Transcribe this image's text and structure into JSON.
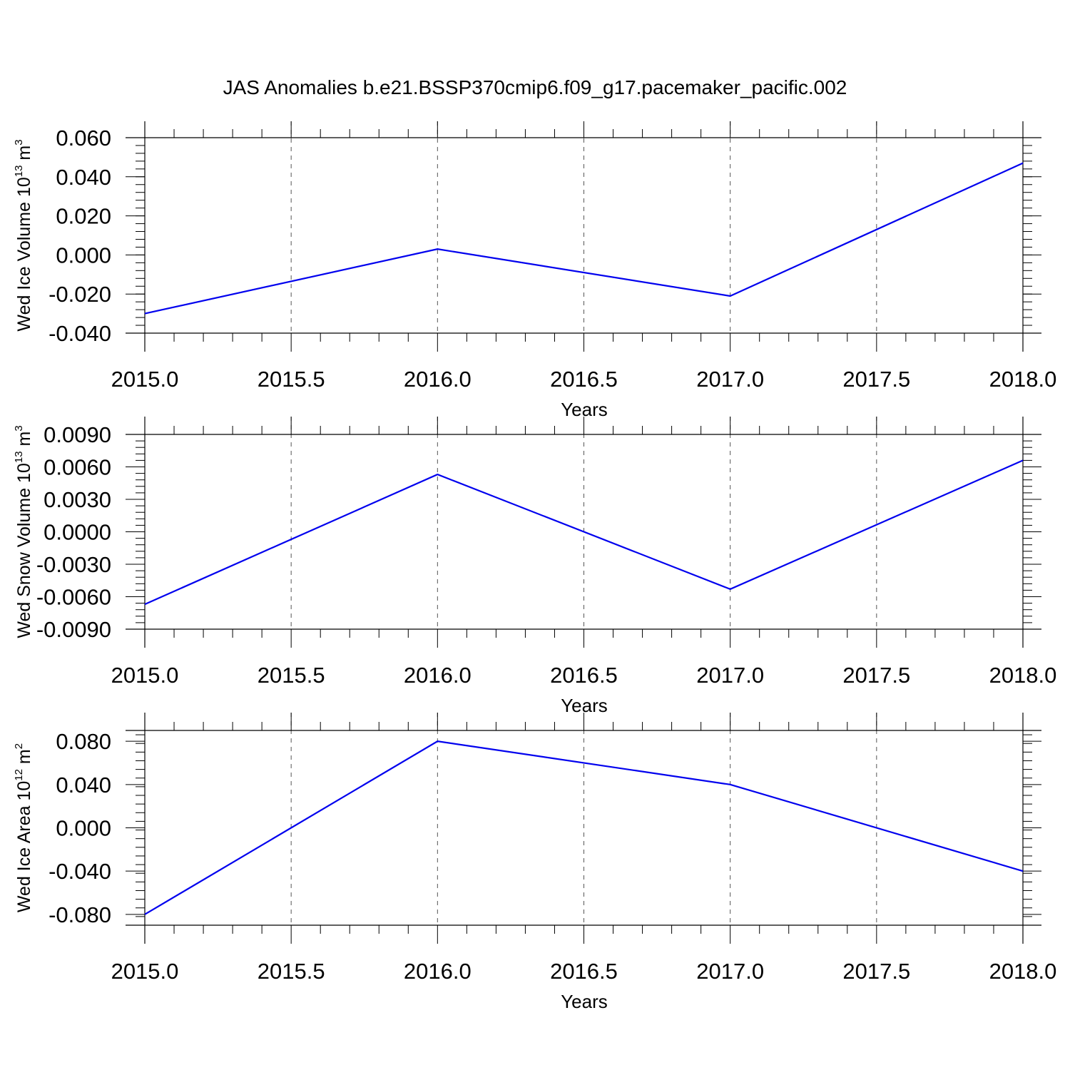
{
  "title": "JAS Anomalies b.e21.BSSP370cmip6.f09_g17.pacemaker_pacific.002",
  "colors": {
    "series": "#0000ee",
    "axes": "#000000",
    "grid": "#555555"
  },
  "chart_data": [
    {
      "type": "line",
      "xlabel": "Years",
      "ylabel": {
        "prefix": "Wed Ice Volume 10",
        "exponent": "13",
        "unit": " m",
        "unit_exponent": "3"
      },
      "x": [
        2015.0,
        2016.0,
        2017.0,
        2018.0
      ],
      "series": [
        {
          "values": [
            -0.03,
            0.003,
            -0.021,
            0.047
          ]
        }
      ],
      "xlim": [
        2015.0,
        2018.0
      ],
      "ylim": [
        -0.04,
        0.06
      ],
      "xticks": [
        "2015.0",
        "2015.5",
        "2016.0",
        "2016.5",
        "2017.0",
        "2017.5",
        "2018.0"
      ],
      "yticks": [
        "-0.040",
        "-0.020",
        "0.000",
        "0.020",
        "0.040",
        "0.060"
      ],
      "grid": "vertical dashed"
    },
    {
      "type": "line",
      "xlabel": "Years",
      "ylabel": {
        "prefix": "Wed Snow Volume 10",
        "exponent": "13",
        "unit": " m",
        "unit_exponent": "3"
      },
      "x": [
        2015.0,
        2016.0,
        2017.0,
        2018.0
      ],
      "series": [
        {
          "values": [
            -0.0067,
            0.0053,
            -0.0053,
            0.0066
          ]
        }
      ],
      "xlim": [
        2015.0,
        2018.0
      ],
      "ylim": [
        -0.009,
        0.009
      ],
      "xticks": [
        "2015.0",
        "2015.5",
        "2016.0",
        "2016.5",
        "2017.0",
        "2017.5",
        "2018.0"
      ],
      "yticks": [
        "-0.0090",
        "-0.0060",
        "-0.0030",
        "0.0000",
        "0.0030",
        "0.0060",
        "0.0090"
      ],
      "grid": "vertical dashed"
    },
    {
      "type": "line",
      "xlabel": "Years",
      "ylabel": {
        "prefix": "Wed Ice Area 10",
        "exponent": "12",
        "unit": " m",
        "unit_exponent": "2"
      },
      "x": [
        2015.0,
        2016.0,
        2017.0,
        2018.0
      ],
      "series": [
        {
          "values": [
            -0.08,
            0.08,
            0.04,
            -0.04
          ]
        }
      ],
      "xlim": [
        2015.0,
        2018.0
      ],
      "ylim": [
        -0.09,
        0.09
      ],
      "xticks": [
        "2015.0",
        "2015.5",
        "2016.0",
        "2016.5",
        "2017.0",
        "2017.5",
        "2018.0"
      ],
      "yticks": [
        "-0.080",
        "-0.040",
        "0.000",
        "0.040",
        "0.080"
      ],
      "grid": "vertical dashed"
    }
  ]
}
